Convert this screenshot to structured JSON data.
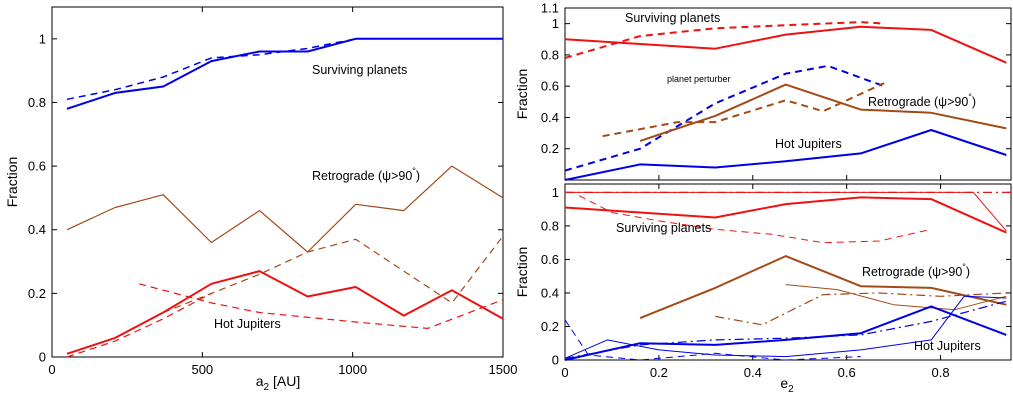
{
  "colors": {
    "blue": "#0000e6",
    "red": "#ee1111",
    "brown": "#a34a17",
    "axis": "#000000"
  },
  "chart_data": [
    {
      "type": "line",
      "panel": "left",
      "xlabel_main": "a",
      "xlabel_sub": "2",
      "xlabel_rest": " [AU]",
      "ylabel": "Fraction",
      "xlim": [
        0,
        1500
      ],
      "ylim": [
        0,
        1.1
      ],
      "xticks": [
        "0",
        "500",
        "1000",
        "1500"
      ],
      "yticks": [
        "0",
        "0.2",
        "0.4",
        "0.6",
        "0.8",
        "1"
      ],
      "annotations": {
        "surviving": "Surviving planets",
        "retro_main": "Retrograde (ψ>90",
        "retro_sup": "°",
        "retro_end": ")",
        "hotj": "Hot Jupiters"
      },
      "series": [
        {
          "key": "surv_solid",
          "color": "blue",
          "style": "solid",
          "width": 2,
          "x": [
            50,
            210,
            370,
            530,
            690,
            850,
            1010,
            1170,
            1330,
            1500
          ],
          "y": [
            0.78,
            0.83,
            0.85,
            0.93,
            0.96,
            0.96,
            1.0,
            1.0,
            1.0,
            1.0
          ]
        },
        {
          "key": "surv_dashed",
          "color": "blue",
          "style": "dashed",
          "width": 1.5,
          "x": [
            50,
            210,
            370,
            530,
            690,
            850,
            1010,
            1170,
            1330,
            1500
          ],
          "y": [
            0.81,
            0.84,
            0.88,
            0.94,
            0.95,
            0.97,
            1.0,
            1.0,
            1.0,
            1.0
          ]
        },
        {
          "key": "retro_solid",
          "color": "brown",
          "style": "solid",
          "width": 1.2,
          "x": [
            50,
            210,
            370,
            530,
            690,
            850,
            1010,
            1170,
            1330,
            1500
          ],
          "y": [
            0.4,
            0.47,
            0.51,
            0.36,
            0.46,
            0.33,
            0.48,
            0.46,
            0.6,
            0.5
          ]
        },
        {
          "key": "retro_dashed",
          "color": "brown",
          "style": "dashed",
          "width": 1.2,
          "x": [
            370,
            530,
            690,
            850,
            1010,
            1170,
            1330,
            1500
          ],
          "y": [
            0.14,
            0.2,
            0.26,
            0.33,
            0.37,
            0.27,
            0.17,
            0.38
          ]
        },
        {
          "key": "hj_solid",
          "color": "red",
          "style": "solid",
          "width": 2,
          "x": [
            50,
            210,
            370,
            530,
            690,
            850,
            1010,
            1170,
            1330,
            1500
          ],
          "y": [
            0.01,
            0.06,
            0.14,
            0.23,
            0.27,
            0.19,
            0.22,
            0.13,
            0.21,
            0.12
          ]
        },
        {
          "key": "hj_dashed",
          "color": "red",
          "style": "dashed",
          "width": 1.2,
          "x": [
            290,
            530,
            690,
            1010,
            1250,
            1500
          ],
          "y": [
            0.23,
            0.17,
            0.14,
            0.11,
            0.09,
            0.18
          ]
        },
        {
          "key": "hj_red_dash_low",
          "color": "red",
          "style": "dashed",
          "width": 1.2,
          "x": [
            50,
            210,
            370,
            530
          ],
          "y": [
            0.0,
            0.05,
            0.12,
            0.2
          ]
        }
      ]
    },
    {
      "type": "line",
      "panel": "right-top",
      "ylabel": "Fraction",
      "xlim": [
        0,
        0.95
      ],
      "ylim": [
        0,
        1.1
      ],
      "yticks": [
        "0.2",
        "0.4",
        "0.6",
        "0.8",
        "1",
        "1.1"
      ],
      "annotations": {
        "surviving": "Surviving planets",
        "perturber": "planet perturber",
        "retro_main": "Retrograde (ψ>90",
        "retro_sup": "°",
        "retro_end": ")",
        "hotj": "Hot Jupiters"
      },
      "series": [
        {
          "key": "surv_solid",
          "color": "red",
          "style": "solid",
          "width": 2,
          "x": [
            0.0,
            0.16,
            0.32,
            0.47,
            0.63,
            0.78,
            0.94
          ],
          "y": [
            0.9,
            0.87,
            0.84,
            0.93,
            0.98,
            0.96,
            0.75
          ]
        },
        {
          "key": "surv_dashed",
          "color": "red",
          "style": "dashed",
          "width": 2,
          "x": [
            0.0,
            0.16,
            0.32,
            0.47,
            0.63,
            0.68
          ],
          "y": [
            0.78,
            0.92,
            0.97,
            0.99,
            1.01,
            1.0
          ]
        },
        {
          "key": "pert_dashed",
          "color": "blue",
          "style": "dashed",
          "width": 2,
          "x": [
            0.0,
            0.16,
            0.32,
            0.47,
            0.56,
            0.68
          ],
          "y": [
            0.06,
            0.2,
            0.49,
            0.68,
            0.73,
            0.6
          ]
        },
        {
          "key": "retro_solid",
          "color": "brown",
          "style": "solid",
          "width": 2,
          "x": [
            0.16,
            0.32,
            0.47,
            0.63,
            0.78,
            0.94
          ],
          "y": [
            0.25,
            0.41,
            0.61,
            0.45,
            0.43,
            0.33
          ]
        },
        {
          "key": "retro_dashed",
          "color": "brown",
          "style": "dashed",
          "width": 2,
          "x": [
            0.08,
            0.24,
            0.32,
            0.47,
            0.55,
            0.68
          ],
          "y": [
            0.28,
            0.37,
            0.37,
            0.51,
            0.44,
            0.62
          ]
        },
        {
          "key": "hj_solid",
          "color": "blue",
          "style": "solid",
          "width": 2,
          "x": [
            0.0,
            0.16,
            0.32,
            0.47,
            0.63,
            0.78,
            0.94
          ],
          "y": [
            0.0,
            0.1,
            0.08,
            0.12,
            0.17,
            0.32,
            0.16
          ]
        }
      ]
    },
    {
      "type": "line",
      "panel": "right-bottom",
      "xlabel_main": "e",
      "xlabel_sub": "2",
      "ylabel": "Fraction",
      "xlim": [
        0,
        0.95
      ],
      "ylim": [
        0,
        1.05
      ],
      "xticks": [
        "0",
        "0.2",
        "0.4",
        "0.6",
        "0.8"
      ],
      "yticks": [
        "0",
        "0.2",
        "0.4",
        "0.6",
        "0.8",
        "1"
      ],
      "annotations": {
        "surviving": "Surviving planets",
        "retro_main": "Retrograde (ψ>90",
        "retro_sup": "°",
        "retro_end": ")",
        "hotj": "Hot Jupiters"
      },
      "series": [
        {
          "key": "surv_dashdot",
          "color": "red",
          "style": "dashdot",
          "width": 1.2,
          "x": [
            0.0,
            0.95
          ],
          "y": [
            1.0,
            1.0
          ]
        },
        {
          "key": "surv_thin",
          "color": "red",
          "style": "solid",
          "width": 1,
          "x": [
            0.0,
            0.2,
            0.4,
            0.6,
            0.8,
            0.87,
            0.94
          ],
          "y": [
            1.0,
            1.0,
            1.0,
            1.0,
            1.0,
            1.0,
            0.77
          ]
        },
        {
          "key": "surv_solid",
          "color": "red",
          "style": "solid",
          "width": 2,
          "x": [
            0.0,
            0.16,
            0.32,
            0.47,
            0.63,
            0.78,
            0.94
          ],
          "y": [
            0.91,
            0.88,
            0.85,
            0.93,
            0.97,
            0.96,
            0.76
          ]
        },
        {
          "key": "surv_dashed",
          "color": "red",
          "style": "dashed",
          "width": 1,
          "x": [
            0.03,
            0.1,
            0.2,
            0.32,
            0.44,
            0.55,
            0.67,
            0.78
          ],
          "y": [
            0.98,
            0.88,
            0.83,
            0.78,
            0.75,
            0.7,
            0.71,
            0.78
          ]
        },
        {
          "key": "retro_solid",
          "color": "brown",
          "style": "solid",
          "width": 2,
          "x": [
            0.16,
            0.32,
            0.47,
            0.63,
            0.78,
            0.94
          ],
          "y": [
            0.25,
            0.43,
            0.62,
            0.44,
            0.43,
            0.33
          ]
        },
        {
          "key": "retro_dashdot",
          "color": "brown",
          "style": "dashdot",
          "width": 1.2,
          "x": [
            0.32,
            0.42,
            0.55,
            0.67,
            0.8,
            0.94
          ],
          "y": [
            0.26,
            0.21,
            0.39,
            0.4,
            0.38,
            0.4
          ]
        },
        {
          "key": "retro_thin",
          "color": "brown",
          "style": "solid",
          "width": 1,
          "x": [
            0.47,
            0.58,
            0.7,
            0.83,
            0.94
          ],
          "y": [
            0.45,
            0.42,
            0.33,
            0.3,
            0.38
          ]
        },
        {
          "key": "hj_solid",
          "color": "blue",
          "style": "solid",
          "width": 2,
          "x": [
            0.0,
            0.16,
            0.32,
            0.47,
            0.63,
            0.78,
            0.94
          ],
          "y": [
            0.0,
            0.1,
            0.09,
            0.12,
            0.16,
            0.32,
            0.15
          ]
        },
        {
          "key": "hj_dashdot",
          "color": "blue",
          "style": "dashdot",
          "width": 1.2,
          "x": [
            0.0,
            0.16,
            0.32,
            0.47,
            0.63,
            0.78,
            0.94
          ],
          "y": [
            0.01,
            0.09,
            0.12,
            0.13,
            0.15,
            0.23,
            0.35
          ]
        },
        {
          "key": "hj_thin",
          "color": "blue",
          "style": "solid",
          "width": 1,
          "x": [
            0.0,
            0.09,
            0.2,
            0.32,
            0.47,
            0.63,
            0.78,
            0.85,
            0.94
          ],
          "y": [
            0.01,
            0.12,
            0.06,
            0.03,
            0.02,
            0.06,
            0.12,
            0.38,
            0.37
          ]
        },
        {
          "key": "hj_dashed",
          "color": "blue",
          "style": "dashed",
          "width": 1,
          "x": [
            0.0,
            0.05,
            0.16,
            0.32,
            0.47,
            0.63
          ],
          "y": [
            0.24,
            0.03,
            0.0,
            0.04,
            0.0,
            0.02
          ]
        }
      ]
    }
  ]
}
